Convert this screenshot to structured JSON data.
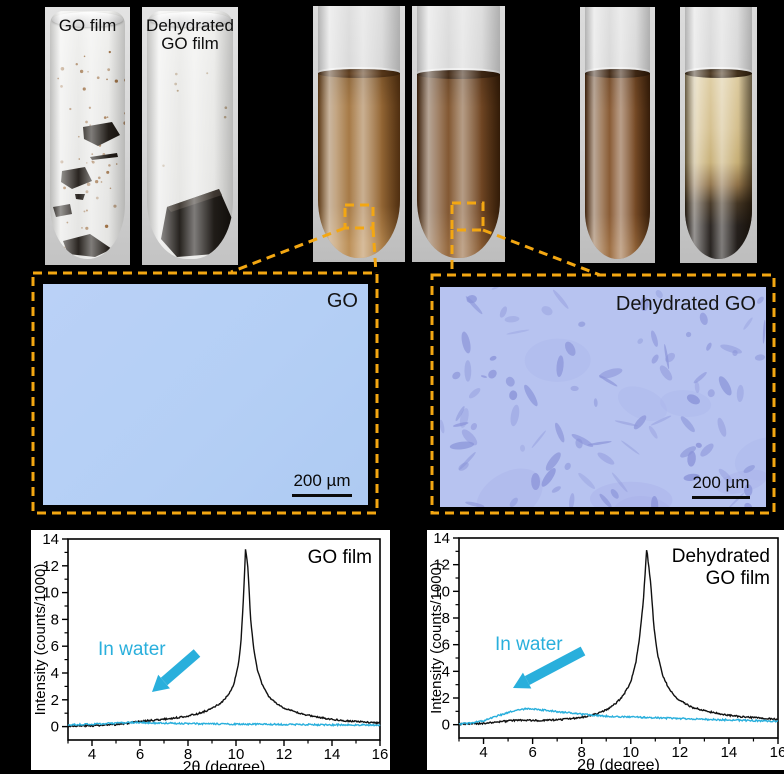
{
  "figure": {
    "photos": {
      "go_film_tube_label": "GO film",
      "dehydrated_tube_label_line1": "Dehydrated",
      "dehydrated_tube_label_line2": "GO film"
    },
    "microscopy": {
      "left_label": "GO",
      "left_scalebar": "200 µm",
      "right_label": "Dehydrated GO",
      "right_scalebar": "200 µm"
    }
  },
  "colors": {
    "highlight_dashed": "#F3A712",
    "water_series": "#29AFDC",
    "dry_series": "#111111",
    "micro_left_bg": "#B5D1F5",
    "micro_right_bg": "#B7C3F0"
  },
  "chart_data": [
    {
      "type": "line",
      "annotation_lines": [
        "GO film"
      ],
      "water_annotation": "In water",
      "xlabel": "2θ (degree)",
      "ylabel": "Intensity (counts/1000)",
      "xlim": [
        3,
        16
      ],
      "ylim": [
        -1,
        14
      ],
      "x_ticks": [
        4,
        6,
        8,
        10,
        12,
        14,
        16
      ],
      "x_minor_ticks": [
        3,
        5,
        7,
        9,
        11,
        13,
        15
      ],
      "y_ticks": [
        0,
        2,
        4,
        6,
        8,
        10,
        12,
        14
      ],
      "y_minor_ticks": [
        1,
        3,
        5,
        7,
        9,
        11,
        13
      ],
      "grid": false,
      "series": [
        {
          "name": "GO film (dry)",
          "color": "#111111",
          "points": [
            [
              3,
              0.05
            ],
            [
              3.5,
              0.05
            ],
            [
              4,
              0.07
            ],
            [
              4.5,
              0.1
            ],
            [
              5,
              0.15
            ],
            [
              5.5,
              0.25
            ],
            [
              6,
              0.38
            ],
            [
              6.5,
              0.47
            ],
            [
              7,
              0.55
            ],
            [
              7.5,
              0.65
            ],
            [
              8,
              0.8
            ],
            [
              8.5,
              1.0
            ],
            [
              9,
              1.35
            ],
            [
              9.4,
              1.8
            ],
            [
              9.7,
              2.4
            ],
            [
              9.9,
              3.1
            ],
            [
              10.1,
              4.6
            ],
            [
              10.2,
              6.2
            ],
            [
              10.3,
              9.2
            ],
            [
              10.4,
              13.3
            ],
            [
              10.5,
              11.8
            ],
            [
              10.6,
              8.2
            ],
            [
              10.75,
              5.6
            ],
            [
              10.9,
              4.2
            ],
            [
              11.1,
              3.1
            ],
            [
              11.3,
              2.4
            ],
            [
              11.5,
              2.0
            ],
            [
              11.8,
              1.6
            ],
            [
              12,
              1.4
            ],
            [
              12.5,
              1.05
            ],
            [
              13,
              0.85
            ],
            [
              13.5,
              0.68
            ],
            [
              14,
              0.55
            ],
            [
              14.5,
              0.45
            ],
            [
              15,
              0.38
            ],
            [
              15.5,
              0.32
            ],
            [
              16,
              0.28
            ]
          ]
        },
        {
          "name": "In water",
          "color": "#29AFDC",
          "points": [
            [
              3,
              0.12
            ],
            [
              4,
              0.18
            ],
            [
              5,
              0.26
            ],
            [
              5.5,
              0.3
            ],
            [
              6,
              0.3
            ],
            [
              6.5,
              0.28
            ],
            [
              7,
              0.26
            ],
            [
              7.5,
              0.24
            ],
            [
              8,
              0.22
            ],
            [
              9,
              0.2
            ],
            [
              10,
              0.18
            ],
            [
              11,
              0.18
            ],
            [
              12,
              0.16
            ],
            [
              13,
              0.15
            ],
            [
              14,
              0.13
            ],
            [
              15,
              0.12
            ],
            [
              16,
              0.1
            ]
          ]
        }
      ]
    },
    {
      "type": "line",
      "annotation_lines": [
        "Dehydrated",
        "GO film"
      ],
      "water_annotation": "In water",
      "xlabel": "2θ (degree)",
      "ylabel": "Intensity (counts/1000)",
      "xlim": [
        3,
        16
      ],
      "ylim": [
        -1,
        14
      ],
      "x_ticks": [
        4,
        6,
        8,
        10,
        12,
        14,
        16
      ],
      "x_minor_ticks": [
        3,
        5,
        7,
        9,
        11,
        13,
        15
      ],
      "y_ticks": [
        0,
        2,
        4,
        6,
        8,
        10,
        12,
        14
      ],
      "y_minor_ticks": [
        1,
        3,
        5,
        7,
        9,
        11,
        13
      ],
      "grid": false,
      "series": [
        {
          "name": "Dehydrated GO film (dry)",
          "color": "#111111",
          "points": [
            [
              3,
              0.05
            ],
            [
              3.5,
              0.06
            ],
            [
              4,
              0.1
            ],
            [
              4.5,
              0.18
            ],
            [
              5,
              0.28
            ],
            [
              5.5,
              0.34
            ],
            [
              6,
              0.32
            ],
            [
              6.5,
              0.32
            ],
            [
              7,
              0.36
            ],
            [
              7.5,
              0.44
            ],
            [
              8,
              0.55
            ],
            [
              8.5,
              0.75
            ],
            [
              9,
              1.1
            ],
            [
              9.4,
              1.6
            ],
            [
              9.7,
              2.2
            ],
            [
              10,
              3.2
            ],
            [
              10.2,
              4.6
            ],
            [
              10.35,
              6.4
            ],
            [
              10.5,
              9.0
            ],
            [
              10.65,
              13.2
            ],
            [
              10.8,
              10.8
            ],
            [
              10.95,
              7.2
            ],
            [
              11.1,
              5.2
            ],
            [
              11.3,
              3.7
            ],
            [
              11.5,
              2.9
            ],
            [
              11.8,
              2.1
            ],
            [
              12,
              1.8
            ],
            [
              12.5,
              1.3
            ],
            [
              13,
              1.05
            ],
            [
              13.5,
              0.85
            ],
            [
              14,
              0.7
            ],
            [
              14.5,
              0.6
            ],
            [
              15,
              0.52
            ],
            [
              15.5,
              0.46
            ],
            [
              16,
              0.4
            ]
          ]
        },
        {
          "name": "In water",
          "color": "#29AFDC",
          "points": [
            [
              3,
              0.05
            ],
            [
              3.5,
              0.12
            ],
            [
              4,
              0.3
            ],
            [
              4.5,
              0.62
            ],
            [
              5,
              0.92
            ],
            [
              5.4,
              1.08
            ],
            [
              5.7,
              1.18
            ],
            [
              6,
              1.18
            ],
            [
              6.3,
              1.12
            ],
            [
              6.6,
              1.06
            ],
            [
              7,
              0.98
            ],
            [
              7.5,
              0.88
            ],
            [
              8,
              0.78
            ],
            [
              8.5,
              0.7
            ],
            [
              9,
              0.64
            ],
            [
              9.5,
              0.6
            ],
            [
              10,
              0.57
            ],
            [
              10.5,
              0.55
            ],
            [
              11,
              0.52
            ],
            [
              11.5,
              0.49
            ],
            [
              12,
              0.46
            ],
            [
              12.5,
              0.43
            ],
            [
              13,
              0.41
            ],
            [
              13.5,
              0.38
            ],
            [
              14,
              0.35
            ],
            [
              14.5,
              0.33
            ],
            [
              15,
              0.3
            ],
            [
              15.5,
              0.28
            ],
            [
              16,
              0.26
            ]
          ]
        }
      ]
    }
  ]
}
